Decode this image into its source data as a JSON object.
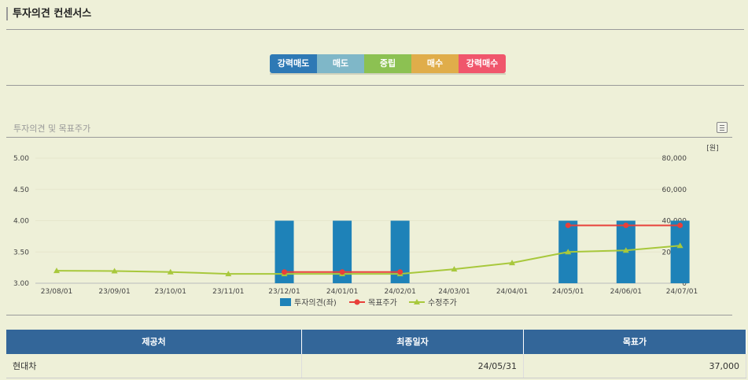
{
  "section": {
    "title": "투자의견 컨센서스"
  },
  "opinion_scale": [
    {
      "label": "강력매도",
      "color": "#2e79b5"
    },
    {
      "label": "매도",
      "color": "#7fb7c8"
    },
    {
      "label": "중립",
      "color": "#8cc152"
    },
    {
      "label": "매수",
      "color": "#e0ad4a"
    },
    {
      "label": "강력매수",
      "color": "#f0566c"
    }
  ],
  "chart_title": "투자의견 및 목표주가",
  "chart_data": {
    "type": "bar",
    "categories": [
      "23/08/01",
      "23/09/01",
      "23/10/01",
      "23/11/01",
      "23/12/01",
      "24/01/01",
      "24/02/01",
      "24/03/01",
      "24/04/01",
      "24/05/01",
      "24/06/01",
      "24/07/01"
    ],
    "left_axis": {
      "ticks": [
        "5.00",
        "4.50",
        "4.00",
        "3.50",
        "3.00"
      ],
      "range": [
        3,
        5
      ]
    },
    "right_axis": {
      "unit": "[원]",
      "ticks": [
        "80,000",
        "60,000",
        "40,000",
        "20,000",
        "0"
      ],
      "range": [
        0,
        80000
      ]
    },
    "series": [
      {
        "name": "투자의견(좌)",
        "kind": "bar",
        "color": "#1e82b8",
        "points": [
          {
            "x": "23/12/01",
            "y": 4.0
          },
          {
            "x": "24/01/01",
            "y": 4.0
          },
          {
            "x": "24/02/01",
            "y": 4.0
          },
          {
            "x": "24/05/01",
            "y": 4.0
          },
          {
            "x": "24/06/01",
            "y": 4.0
          },
          {
            "x": "24/06/30",
            "y": 4.0
          }
        ]
      },
      {
        "name": "목표주가",
        "kind": "line",
        "color": "#e8403a",
        "segments": [
          [
            {
              "x": "23/12/01",
              "y": 7200
            },
            {
              "x": "24/01/01",
              "y": 7200
            },
            {
              "x": "24/02/01",
              "y": 7200
            }
          ],
          [
            {
              "x": "24/05/01",
              "y": 37000
            },
            {
              "x": "24/06/01",
              "y": 37000
            },
            {
              "x": "24/06/30",
              "y": 37000
            }
          ]
        ]
      },
      {
        "name": "수정주가",
        "kind": "line",
        "color": "#a8c83c",
        "points": [
          {
            "x": "23/08/01",
            "y": 8000
          },
          {
            "x": "23/09/01",
            "y": 7800
          },
          {
            "x": "23/10/01",
            "y": 7200
          },
          {
            "x": "23/11/01",
            "y": 6000
          },
          {
            "x": "23/12/01",
            "y": 6000
          },
          {
            "x": "24/01/01",
            "y": 6000
          },
          {
            "x": "24/02/01",
            "y": 6000
          },
          {
            "x": "24/03/01",
            "y": 9000
          },
          {
            "x": "24/04/01",
            "y": 13000
          },
          {
            "x": "24/05/01",
            "y": 20000
          },
          {
            "x": "24/06/01",
            "y": 21000
          },
          {
            "x": "24/06/30",
            "y": 24000
          }
        ]
      }
    ],
    "legend": [
      "투자의견(좌)",
      "목표주가",
      "수정주가"
    ],
    "legend_placement": "bottom-center"
  },
  "table": {
    "headers": [
      "제공처",
      "최종일자",
      "목표가"
    ],
    "rows": [
      [
        "현대차",
        "24/05/31",
        "37,000"
      ]
    ]
  }
}
